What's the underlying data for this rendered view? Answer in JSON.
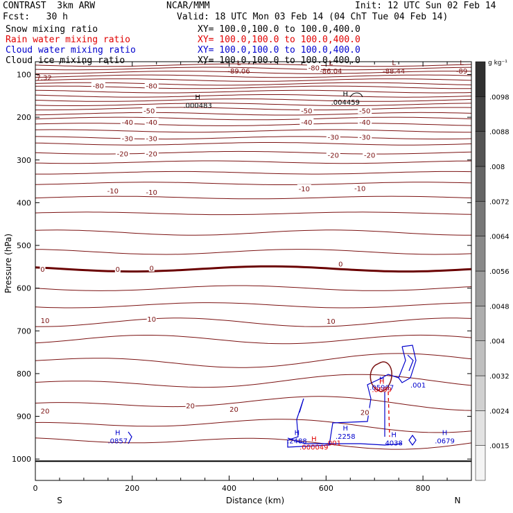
{
  "header": {
    "model": "CONTRAST  3km ARW",
    "org": "NCAR/MMM",
    "init": "Init: 12 UTC Sun 02 Feb 14",
    "fcst": "Fcst:   30 h",
    "valid": "Valid: 18 UTC Mon 03 Feb 14 (04 ChT Tue 04 Feb 14)"
  },
  "fields": [
    {
      "name": "Snow mixing ratio",
      "xy": "XY= 100.0,100.0 to 100.0,400.0",
      "color": "#000000"
    },
    {
      "name": "Rain water mixing ratio",
      "xy": "XY= 100.0,100.0 to 100.0,400.0",
      "color": "#e00000"
    },
    {
      "name": "Cloud water mixing ratio",
      "xy": "XY= 100.0,100.0 to 100.0,400.0",
      "color": "#0000cc"
    },
    {
      "name": "Cloud ice mixing ratio",
      "xy": "XY= 100.0,100.0 to 100.0,400.0",
      "color": "#000000"
    }
  ],
  "chart_data": {
    "type": "line",
    "xlabel": "Distance (km)",
    "ylabel": "Pressure (hPa)",
    "xlim": [
      0,
      900
    ],
    "ylim": [
      1050,
      70
    ],
    "xticks": [
      0,
      200,
      400,
      600,
      800
    ],
    "yticks": [
      100,
      200,
      300,
      400,
      500,
      600,
      700,
      800,
      900,
      1000
    ],
    "x_endpoints": {
      "left": "S",
      "right": "N"
    },
    "temperature_contours": {
      "color": "#7a1010",
      "zero_color": "#6a0000",
      "labels": [
        {
          "text": "-80",
          "x": 130,
          "p": 126
        },
        {
          "text": "-80",
          "x": 240,
          "p": 126
        },
        {
          "text": "-80",
          "x": 575,
          "p": 84
        },
        {
          "text": "-50",
          "x": 235,
          "p": 184
        },
        {
          "text": "-50",
          "x": 560,
          "p": 184
        },
        {
          "text": "-50",
          "x": 680,
          "p": 184
        },
        {
          "text": "-40",
          "x": 190,
          "p": 211
        },
        {
          "text": "-40",
          "x": 240,
          "p": 211
        },
        {
          "text": "-40",
          "x": 560,
          "p": 211
        },
        {
          "text": "-40",
          "x": 680,
          "p": 211
        },
        {
          "text": "-30",
          "x": 190,
          "p": 249
        },
        {
          "text": "-30",
          "x": 240,
          "p": 249
        },
        {
          "text": "-30",
          "x": 615,
          "p": 246
        },
        {
          "text": "-30",
          "x": 680,
          "p": 246
        },
        {
          "text": "-20",
          "x": 180,
          "p": 285
        },
        {
          "text": "-20",
          "x": 240,
          "p": 285
        },
        {
          "text": "-20",
          "x": 615,
          "p": 288
        },
        {
          "text": "-20",
          "x": 690,
          "p": 288
        },
        {
          "text": "-10",
          "x": 160,
          "p": 372
        },
        {
          "text": "-10",
          "x": 240,
          "p": 375
        },
        {
          "text": "-10",
          "x": 555,
          "p": 367
        },
        {
          "text": "-10",
          "x": 670,
          "p": 366
        },
        {
          "text": "0",
          "x": 15,
          "p": 555
        },
        {
          "text": "0",
          "x": 170,
          "p": 555
        },
        {
          "text": "0",
          "x": 240,
          "p": 553
        },
        {
          "text": "0",
          "x": 630,
          "p": 543
        },
        {
          "text": "10",
          "x": 20,
          "p": 675
        },
        {
          "text": "10",
          "x": 240,
          "p": 672
        },
        {
          "text": "10",
          "x": 610,
          "p": 677
        },
        {
          "text": "20",
          "x": 20,
          "p": 887
        },
        {
          "text": "20",
          "x": 320,
          "p": 875
        },
        {
          "text": "20",
          "x": 410,
          "p": 883
        },
        {
          "text": "20",
          "x": 680,
          "p": 890
        }
      ],
      "extrema": [
        {
          "text": "L",
          "value": "-89.06",
          "x": 420,
          "p": 85
        },
        {
          "text": "L",
          "value": "-86.04",
          "x": 610,
          "p": 85
        },
        {
          "text": "L",
          "value": "-88.44",
          "x": 740,
          "p": 85
        },
        {
          "text": "L",
          "value": "-89",
          "x": 880,
          "p": 85
        },
        {
          "text": "",
          "value": "7.32",
          "x": 18,
          "p": 100
        }
      ]
    },
    "snow_extrema": [
      {
        "text": "H",
        "value": ".000483",
        "x": 335,
        "p": 165
      },
      {
        "text": "H",
        "value": ".004459",
        "x": 640,
        "p": 158
      }
    ],
    "cloud_water_extrema": [
      {
        "text": "H",
        "value": ".0857",
        "x": 170,
        "p": 950
      },
      {
        "text": "H",
        "value": ".2488",
        "x": 540,
        "p": 950
      },
      {
        "text": "H",
        "value": ".2258",
        "x": 640,
        "p": 940
      },
      {
        "text": "H",
        "value": "4038",
        "x": 740,
        "p": 955
      },
      {
        "text": "H",
        "value": ".0679",
        "x": 845,
        "p": 950
      },
      {
        "text": "",
        "value": ".001",
        "x": 790,
        "p": 820
      },
      {
        "text": "H",
        "value": ".05907",
        "x": 715,
        "p": 825
      }
    ],
    "rain_extrema": [
      {
        "text": "H",
        "value": ".000049",
        "x": 575,
        "p": 965
      },
      {
        "text": "",
        "value": ".001",
        "x": 615,
        "p": 955
      },
      {
        "text": "H",
        "value": ".0699",
        "x": 715,
        "p": 830
      }
    ],
    "colorbar": {
      "unit": "g kg⁻¹",
      "levels": [
        ".0015",
        ".0024",
        ".0032",
        ".004",
        ".0048",
        ".0056",
        ".0064",
        ".0072",
        ".008",
        ".0088",
        ".0098"
      ],
      "light": "#f4f4f4",
      "dark": "#303030"
    }
  }
}
